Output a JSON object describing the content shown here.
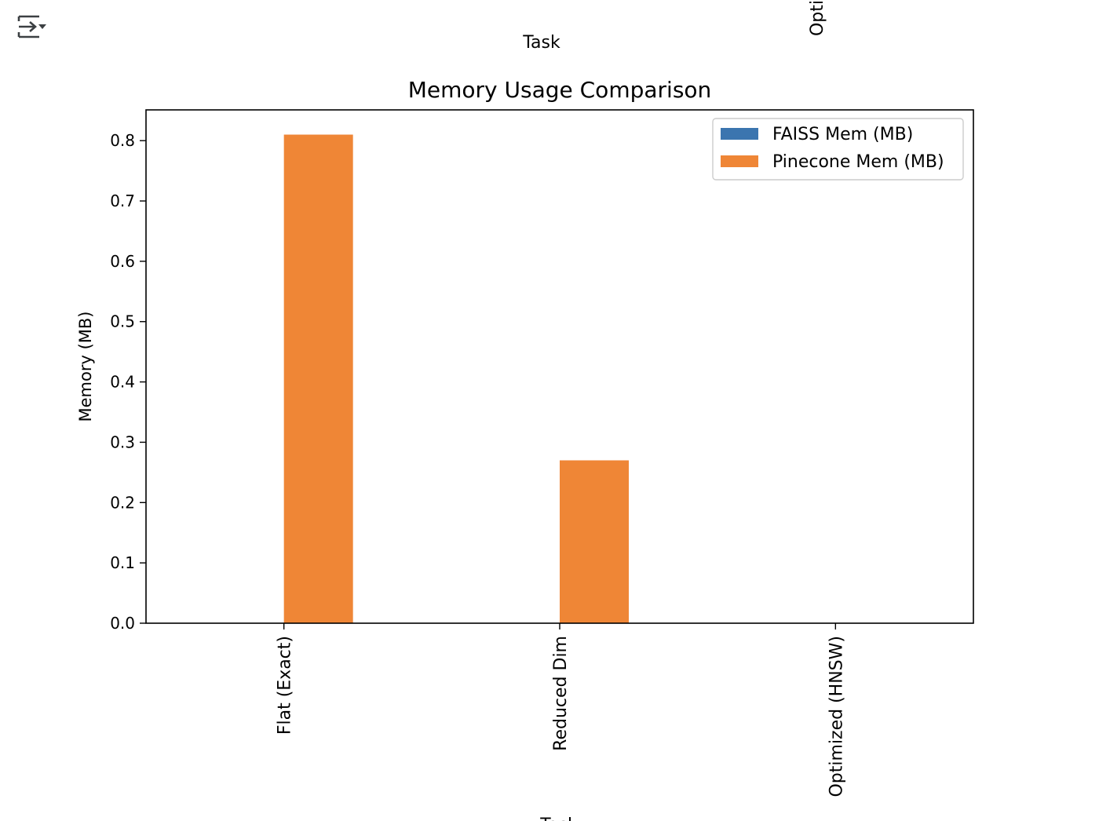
{
  "prev_chart_fragment": {
    "xlabel": "Task",
    "rotated_tick_fragment": "Opti"
  },
  "output_toggle": {
    "icon": "output-collapse-icon"
  },
  "chart_data": {
    "type": "bar",
    "title": "Memory Usage Comparison",
    "xlabel": "Task",
    "ylabel": "Memory (MB)",
    "categories": [
      "Flat (Exact)",
      "Reduced Dim",
      "Optimized (HNSW)"
    ],
    "series": [
      {
        "name": "FAISS Mem (MB)",
        "color": "#3b75af",
        "values": [
          0.0,
          0.0,
          0.0
        ]
      },
      {
        "name": "Pinecone Mem (MB)",
        "color": "#ef8636",
        "values": [
          0.81,
          0.27,
          0.0
        ]
      }
    ],
    "yticks": [
      "0.0",
      "0.1",
      "0.2",
      "0.3",
      "0.4",
      "0.5",
      "0.6",
      "0.7",
      "0.8"
    ],
    "ylim": [
      0,
      0.851
    ],
    "grid": false,
    "legend_position": "top-right",
    "xtick_rotation": "vertical"
  }
}
